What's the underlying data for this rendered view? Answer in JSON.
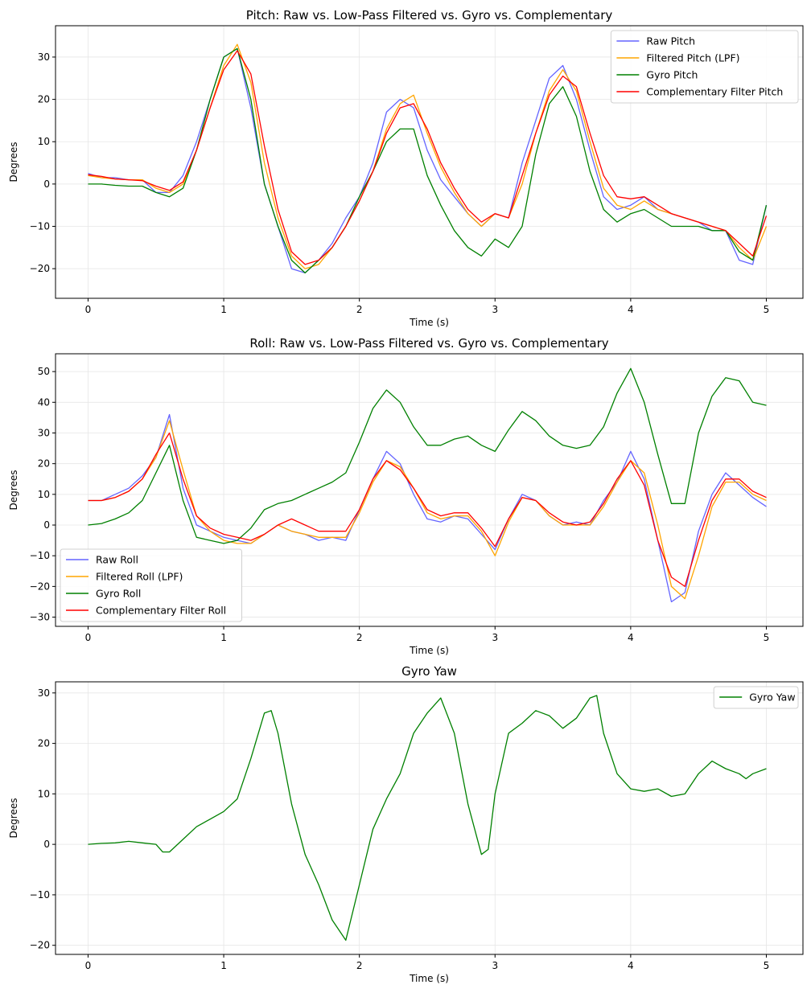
{
  "chart_data": [
    {
      "type": "line",
      "title": "Pitch: Raw vs. Low-Pass Filtered vs. Gyro vs. Complementary",
      "xlabel": "Time (s)",
      "ylabel": "Degrees",
      "xlim": [
        -0.24,
        5.27
      ],
      "ylim": [
        -27,
        37.4
      ],
      "xticks": [
        0,
        1,
        2,
        3,
        4,
        5
      ],
      "yticks": [
        -20,
        -10,
        0,
        10,
        20,
        30
      ],
      "grid": true,
      "legend": "top-right",
      "x": [
        0,
        0.1,
        0.2,
        0.3,
        0.4,
        0.5,
        0.6,
        0.7,
        0.8,
        0.9,
        1.0,
        1.1,
        1.2,
        1.3,
        1.4,
        1.5,
        1.6,
        1.7,
        1.8,
        1.9,
        2.0,
        2.1,
        2.2,
        2.3,
        2.4,
        2.5,
        2.6,
        2.7,
        2.8,
        2.9,
        3.0,
        3.1,
        3.2,
        3.3,
        3.4,
        3.5,
        3.6,
        3.7,
        3.8,
        3.9,
        4.0,
        4.1,
        4.2,
        4.3,
        4.4,
        4.5,
        4.6,
        4.7,
        4.8,
        4.9,
        5.0
      ],
      "series": [
        {
          "name": "Raw Pitch",
          "color": "#6464ff",
          "values": [
            2.5,
            1.5,
            1.5,
            1,
            1,
            -2,
            -2,
            2,
            10,
            20,
            30,
            32,
            18,
            0,
            -10,
            -20,
            -21,
            -18,
            -14,
            -8,
            -3,
            5,
            17,
            20,
            18,
            8,
            1,
            -3,
            -7,
            -10,
            -7,
            -8,
            5,
            15,
            25,
            28,
            20,
            8,
            -3,
            -6,
            -5,
            -3,
            -6,
            -7,
            -8,
            -9,
            -11,
            -11,
            -18,
            -19,
            -5
          ]
        },
        {
          "name": "Filtered Pitch (LPF)",
          "color": "#ffa500",
          "values": [
            2,
            1.5,
            1.2,
            1,
            1,
            -1,
            -2,
            0,
            8,
            18,
            28,
            33,
            24,
            5,
            -8,
            -17,
            -20,
            -19,
            -15,
            -10,
            -4,
            3,
            13,
            19,
            21,
            12,
            4,
            -2,
            -7,
            -10,
            -7,
            -8,
            0,
            12,
            22,
            27,
            22,
            10,
            -1,
            -5,
            -6,
            -4,
            -6,
            -7,
            -8,
            -9,
            -10,
            -11,
            -15,
            -18,
            -10
          ]
        },
        {
          "name": "Gyro Pitch",
          "color": "#008000",
          "values": [
            0,
            0,
            -0.3,
            -0.5,
            -0.5,
            -2,
            -3,
            -1,
            8,
            20,
            30,
            32,
            20,
            0,
            -10,
            -18,
            -21,
            -18,
            -15,
            -10,
            -3,
            3,
            10,
            13,
            13,
            2,
            -5,
            -11,
            -15,
            -17,
            -13,
            -15,
            -10,
            7,
            19,
            23,
            16,
            3,
            -6,
            -9,
            -7,
            -6,
            -8,
            -10,
            -10,
            -10,
            -11,
            -11,
            -16,
            -18,
            -5
          ]
        },
        {
          "name": "Complementary Filter Pitch",
          "color": "#ff0000",
          "values": [
            2.2,
            1.8,
            1.2,
            1,
            0.8,
            -0.5,
            -1.5,
            0.5,
            8,
            18,
            27,
            31.5,
            26,
            9,
            -6,
            -16,
            -19,
            -18,
            -15,
            -10,
            -4,
            3,
            12,
            18,
            19,
            13,
            5,
            -1,
            -6,
            -9,
            -7,
            -8,
            2,
            12,
            21,
            25.5,
            23,
            12,
            2,
            -3,
            -3.5,
            -3,
            -5,
            -7,
            -8,
            -9,
            -10,
            -11,
            -14,
            -17,
            -7.5
          ]
        }
      ]
    },
    {
      "type": "line",
      "title": "Roll: Raw vs. Low-Pass Filtered vs. Gyro vs. Complementary",
      "xlabel": "Time (s)",
      "ylabel": "Degrees",
      "xlim": [
        -0.24,
        5.27
      ],
      "ylim": [
        -33,
        55.8
      ],
      "xticks": [
        0,
        1,
        2,
        3,
        4,
        5
      ],
      "yticks": [
        -30,
        -20,
        -10,
        0,
        10,
        20,
        30,
        40,
        50
      ],
      "grid": true,
      "legend": "lower-left",
      "x": [
        0,
        0.1,
        0.2,
        0.3,
        0.4,
        0.5,
        0.6,
        0.7,
        0.8,
        0.9,
        1.0,
        1.1,
        1.2,
        1.3,
        1.4,
        1.5,
        1.6,
        1.7,
        1.8,
        1.9,
        2.0,
        2.1,
        2.2,
        2.3,
        2.4,
        2.5,
        2.6,
        2.7,
        2.8,
        2.9,
        3.0,
        3.1,
        3.2,
        3.3,
        3.4,
        3.5,
        3.6,
        3.7,
        3.8,
        3.9,
        4.0,
        4.1,
        4.2,
        4.3,
        4.4,
        4.5,
        4.6,
        4.7,
        4.8,
        4.9,
        5.0
      ],
      "series": [
        {
          "name": "Raw Roll",
          "color": "#6464ff",
          "values": [
            8,
            8,
            10,
            12,
            16,
            22,
            36,
            12,
            0,
            -2,
            -4,
            -5,
            -6,
            -3,
            0,
            -2,
            -3,
            -5,
            -4,
            -5,
            5,
            15,
            24,
            20,
            10,
            2,
            1,
            3,
            2,
            -3,
            -8,
            2,
            10,
            8,
            3,
            0,
            1,
            0,
            8,
            14,
            24,
            15,
            -5,
            -25,
            -22,
            -2,
            10,
            17,
            13,
            9,
            6
          ]
        },
        {
          "name": "Filtered Roll (LPF)",
          "color": "#ffa500",
          "values": [
            8,
            8,
            9,
            11,
            15,
            22,
            34,
            18,
            3,
            -2,
            -5,
            -6,
            -6,
            -3,
            0,
            -2,
            -3,
            -4,
            -4,
            -4,
            4,
            14,
            21,
            19,
            12,
            4,
            2,
            3,
            3,
            -2,
            -10,
            1,
            9,
            8,
            3,
            0,
            0,
            0,
            6,
            14,
            21,
            17,
            0,
            -20,
            -24,
            -10,
            6,
            14,
            14,
            10,
            8
          ]
        },
        {
          "name": "Gyro Roll",
          "color": "#008000",
          "values": [
            0,
            0.5,
            2,
            4,
            8,
            17,
            26,
            8,
            -4,
            -5,
            -6,
            -5,
            -1,
            5,
            7,
            8,
            10,
            12,
            14,
            17,
            27,
            38,
            44,
            40,
            32,
            26,
            26,
            28,
            29,
            26,
            24,
            31,
            37,
            34,
            29,
            26,
            25,
            26,
            32,
            43,
            51,
            40,
            23,
            7,
            7,
            30,
            42,
            48,
            47,
            40,
            39
          ]
        },
        {
          "name": "Complementary Filter Roll",
          "color": "#ff0000",
          "values": [
            8,
            8,
            9,
            11,
            15,
            23,
            30,
            15,
            3,
            -1,
            -3,
            -4,
            -5,
            -3,
            0,
            2,
            0,
            -2,
            -2,
            -2,
            5,
            15,
            21,
            18,
            12,
            5,
            3,
            4,
            4,
            -1,
            -7,
            2,
            9,
            8,
            4,
            1,
            0,
            1,
            7,
            15,
            21,
            13,
            -5,
            -17,
            -20,
            -5,
            8,
            15,
            15,
            11,
            9
          ]
        }
      ]
    },
    {
      "type": "line",
      "title": "Gyro Yaw",
      "xlabel": "Time (s)",
      "ylabel": "Degrees",
      "xlim": [
        -0.24,
        5.27
      ],
      "ylim": [
        -21.8,
        32.2
      ],
      "xticks": [
        0,
        1,
        2,
        3,
        4,
        5
      ],
      "yticks": [
        -20,
        -10,
        0,
        10,
        20,
        30
      ],
      "grid": true,
      "legend": "top-right",
      "x": [
        0,
        0.1,
        0.2,
        0.3,
        0.4,
        0.5,
        0.55,
        0.6,
        0.7,
        0.8,
        0.9,
        1.0,
        1.1,
        1.2,
        1.3,
        1.35,
        1.4,
        1.5,
        1.6,
        1.7,
        1.8,
        1.9,
        2.0,
        2.1,
        2.2,
        2.3,
        2.4,
        2.5,
        2.6,
        2.7,
        2.8,
        2.9,
        2.95,
        3.0,
        3.1,
        3.2,
        3.3,
        3.4,
        3.5,
        3.6,
        3.7,
        3.75,
        3.8,
        3.9,
        4.0,
        4.1,
        4.2,
        4.3,
        4.4,
        4.5,
        4.6,
        4.7,
        4.8,
        4.85,
        4.9,
        5.0
      ],
      "series": [
        {
          "name": "Gyro Yaw",
          "color": "#008000",
          "values": [
            0,
            0.2,
            0.3,
            0.6,
            0.3,
            0,
            -1.5,
            -1.5,
            1,
            3.5,
            5,
            6.5,
            9,
            17,
            26,
            26.5,
            22,
            8,
            -2,
            -8,
            -15,
            -19,
            -8,
            3,
            9,
            14,
            22,
            26,
            29,
            22,
            8,
            -2,
            -1,
            10,
            22,
            24,
            26.5,
            25.5,
            23,
            25,
            29,
            29.5,
            22,
            14,
            11,
            10.5,
            11,
            9.5,
            10,
            14,
            16.5,
            15,
            14,
            13,
            14,
            15
          ]
        }
      ]
    }
  ]
}
